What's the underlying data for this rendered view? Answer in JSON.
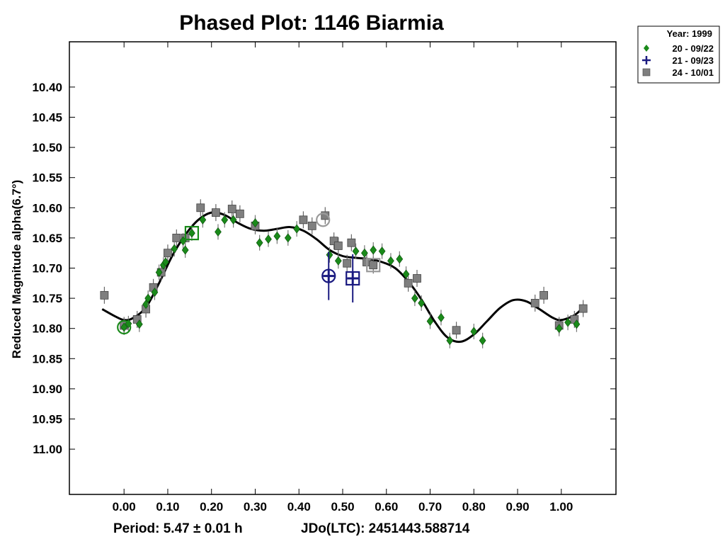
{
  "chart_data": {
    "type": "scatter",
    "title": "Phased Plot: 1146 Biarmia",
    "ylabel": "Reduced Magnitude alpha(6.7°)",
    "xlabel": "",
    "xlim": [
      -0.125,
      1.125
    ],
    "ylim": [
      11.075,
      10.325
    ],
    "x_ticks": [
      "0.00",
      "0.10",
      "0.20",
      "0.30",
      "0.40",
      "0.50",
      "0.60",
      "0.70",
      "0.80",
      "0.90",
      "1.00"
    ],
    "y_ticks": [
      "10.40",
      "10.45",
      "10.50",
      "10.55",
      "10.60",
      "10.65",
      "10.70",
      "10.75",
      "10.80",
      "10.85",
      "10.90",
      "10.95",
      "11.00"
    ],
    "footer": {
      "period": "Period: 5.47 ± 0.01 h",
      "epoch": "JDo(LTC): 2451443.588714"
    },
    "legend": {
      "title": "Year: 1999",
      "entries": [
        {
          "label": "20 - 09/22",
          "marker": "diamond",
          "color": "#1a8a1a"
        },
        {
          "label": "21 - 09/23",
          "marker": "plus",
          "color": "#1a1a80"
        },
        {
          "label": "24 - 10/01",
          "marker": "square",
          "color": "#7f7f7f"
        }
      ]
    },
    "series": [
      {
        "name": "20 - 09/22",
        "marker": "diamond",
        "color": "#1a8a1a",
        "points": [
          [
            0.0,
            10.798
          ],
          [
            0.01,
            10.792
          ],
          [
            0.035,
            10.793
          ],
          [
            0.05,
            10.76
          ],
          [
            0.055,
            10.75
          ],
          [
            0.07,
            10.74
          ],
          [
            0.08,
            10.707
          ],
          [
            0.09,
            10.695
          ],
          [
            0.095,
            10.69
          ],
          [
            0.115,
            10.668
          ],
          [
            0.135,
            10.655
          ],
          [
            0.14,
            10.67
          ],
          [
            0.155,
            10.642
          ],
          [
            0.18,
            10.62
          ],
          [
            0.215,
            10.64
          ],
          [
            0.23,
            10.62
          ],
          [
            0.25,
            10.62
          ],
          [
            0.3,
            10.625
          ],
          [
            0.31,
            10.658
          ],
          [
            0.33,
            10.652
          ],
          [
            0.35,
            10.647
          ],
          [
            0.375,
            10.65
          ],
          [
            0.395,
            10.635
          ],
          [
            0.47,
            10.678
          ],
          [
            0.49,
            10.688
          ],
          [
            0.53,
            10.672
          ],
          [
            0.55,
            10.675
          ],
          [
            0.57,
            10.67
          ],
          [
            0.59,
            10.672
          ],
          [
            0.61,
            10.688
          ],
          [
            0.63,
            10.685
          ],
          [
            0.645,
            10.71
          ],
          [
            0.665,
            10.75
          ],
          [
            0.68,
            10.758
          ],
          [
            0.7,
            10.788
          ],
          [
            0.725,
            10.782
          ],
          [
            0.745,
            10.82
          ],
          [
            0.8,
            10.805
          ],
          [
            0.82,
            10.82
          ],
          [
            0.995,
            10.8
          ],
          [
            1.015,
            10.79
          ],
          [
            1.035,
            10.793
          ]
        ]
      },
      {
        "name": "21 - 09/23",
        "marker": "plus",
        "color": "#1a1a80",
        "points": [
          [
            0.468,
            10.713
          ],
          [
            0.523,
            10.717
          ]
        ]
      },
      {
        "name": "24 - 10/01",
        "marker": "square",
        "color": "#7f7f7f",
        "points": [
          [
            -0.045,
            10.745
          ],
          [
            0.0,
            10.795
          ],
          [
            0.03,
            10.785
          ],
          [
            0.05,
            10.768
          ],
          [
            0.067,
            10.732
          ],
          [
            0.085,
            10.707
          ],
          [
            0.1,
            10.675
          ],
          [
            0.12,
            10.65
          ],
          [
            0.14,
            10.65
          ],
          [
            0.175,
            10.6
          ],
          [
            0.21,
            10.608
          ],
          [
            0.247,
            10.602
          ],
          [
            0.265,
            10.61
          ],
          [
            0.3,
            10.63
          ],
          [
            0.41,
            10.62
          ],
          [
            0.43,
            10.63
          ],
          [
            0.46,
            10.613
          ],
          [
            0.48,
            10.655
          ],
          [
            0.49,
            10.663
          ],
          [
            0.51,
            10.692
          ],
          [
            0.52,
            10.658
          ],
          [
            0.555,
            10.69
          ],
          [
            0.57,
            10.695
          ],
          [
            0.65,
            10.725
          ],
          [
            0.67,
            10.717
          ],
          [
            0.76,
            10.803
          ],
          [
            0.94,
            10.758
          ],
          [
            0.96,
            10.745
          ],
          [
            0.995,
            10.795
          ],
          [
            1.03,
            10.785
          ],
          [
            1.05,
            10.767
          ]
        ]
      }
    ],
    "highlighted_points": [
      {
        "x": 0.0,
        "y": 10.798,
        "shape": "circle",
        "color": "#1a8a1a"
      },
      {
        "x": 0.155,
        "y": 10.642,
        "shape": "square",
        "color": "#1a8a1a"
      },
      {
        "x": 0.455,
        "y": 10.62,
        "shape": "circle",
        "color": "#9a9a9a"
      },
      {
        "x": 0.468,
        "y": 10.713,
        "shape": "circle",
        "color": "#1a1a80"
      },
      {
        "x": 0.523,
        "y": 10.717,
        "shape": "square",
        "color": "#1a1a80"
      },
      {
        "x": 0.57,
        "y": 10.695,
        "shape": "square",
        "color": "#9a9a9a"
      }
    ],
    "fit_curve": {
      "color": "#000000",
      "points": [
        [
          -0.05,
          10.768
        ],
        [
          -0.02,
          10.78
        ],
        [
          0.0,
          10.786
        ],
        [
          0.02,
          10.783
        ],
        [
          0.05,
          10.765
        ],
        [
          0.08,
          10.725
        ],
        [
          0.11,
          10.68
        ],
        [
          0.14,
          10.645
        ],
        [
          0.17,
          10.62
        ],
        [
          0.2,
          10.608
        ],
        [
          0.23,
          10.612
        ],
        [
          0.26,
          10.625
        ],
        [
          0.29,
          10.635
        ],
        [
          0.32,
          10.638
        ],
        [
          0.35,
          10.635
        ],
        [
          0.38,
          10.632
        ],
        [
          0.41,
          10.638
        ],
        [
          0.44,
          10.652
        ],
        [
          0.47,
          10.67
        ],
        [
          0.5,
          10.68
        ],
        [
          0.53,
          10.683
        ],
        [
          0.56,
          10.685
        ],
        [
          0.59,
          10.69
        ],
        [
          0.62,
          10.7
        ],
        [
          0.65,
          10.722
        ],
        [
          0.68,
          10.752
        ],
        [
          0.71,
          10.788
        ],
        [
          0.74,
          10.815
        ],
        [
          0.77,
          10.822
        ],
        [
          0.8,
          10.81
        ],
        [
          0.83,
          10.788
        ],
        [
          0.86,
          10.766
        ],
        [
          0.89,
          10.753
        ],
        [
          0.92,
          10.755
        ],
        [
          0.95,
          10.768
        ],
        [
          0.98,
          10.782
        ],
        [
          1.0,
          10.786
        ],
        [
          1.03,
          10.778
        ],
        [
          1.05,
          10.765
        ]
      ]
    }
  }
}
